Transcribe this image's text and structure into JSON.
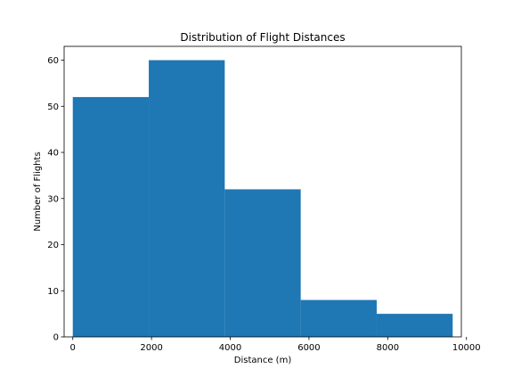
{
  "chart_data": {
    "type": "bar",
    "title": "Distribution of Flight Distances",
    "xlabel": "Distance (m)",
    "ylabel": "Number of Flights",
    "bins": [
      {
        "start": 0,
        "end": 1930,
        "count": 52
      },
      {
        "start": 1930,
        "end": 3860,
        "count": 60
      },
      {
        "start": 3860,
        "end": 5790,
        "count": 32
      },
      {
        "start": 5790,
        "end": 7720,
        "count": 8
      },
      {
        "start": 7720,
        "end": 9650,
        "count": 5
      }
    ],
    "xlim": [
      -220,
      9870
    ],
    "ylim": [
      0,
      63
    ],
    "xticks": [
      0,
      2000,
      4000,
      6000,
      8000,
      10000
    ],
    "yticks": [
      0,
      10,
      20,
      30,
      40,
      50,
      60
    ],
    "bar_color": "#1f77b4",
    "grid": false,
    "legend": false
  }
}
